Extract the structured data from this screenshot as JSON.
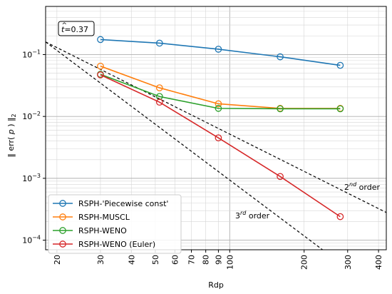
{
  "chart_data": {
    "type": "line",
    "xlabel": "Rdp",
    "ylabel_parts": [
      "‖ err( ",
      "p",
      " ) ‖",
      "2"
    ],
    "xscale": "log",
    "yscale": "log",
    "xlim": [
      18,
      430
    ],
    "ylim": [
      7e-05,
      0.6
    ],
    "grid": "on (major and minor)",
    "annotation": {
      "prefix": "t",
      "text": "=0.37"
    },
    "x_ticks": [
      {
        "value": 20,
        "label": "20"
      },
      {
        "value": 30,
        "label": "30"
      },
      {
        "value": 40,
        "label": "40"
      },
      {
        "value": 50,
        "label": "50"
      },
      {
        "value": 60,
        "label": "60"
      },
      {
        "value": 70,
        "label": "70"
      },
      {
        "value": 80,
        "label": "80"
      },
      {
        "value": 90,
        "label": "90"
      },
      {
        "value": 100,
        "label": "100"
      },
      {
        "value": 200,
        "label": "200"
      },
      {
        "value": 300,
        "label": "300"
      },
      {
        "value": 400,
        "label": "400"
      }
    ],
    "y_ticks": [
      {
        "value": 0.1,
        "base": "10",
        "exp": "−1"
      },
      {
        "value": 0.01,
        "base": "10",
        "exp": "−2"
      },
      {
        "value": 0.001,
        "base": "10",
        "exp": "−3"
      },
      {
        "value": 0.0001,
        "base": "10",
        "exp": "−4"
      }
    ],
    "x": [
      30,
      52,
      90,
      160,
      280
    ],
    "series": [
      {
        "name": "RSPH-'Piecewise const'",
        "color": "#1f77b4",
        "values": [
          0.175,
          0.153,
          0.122,
          0.092,
          0.067
        ]
      },
      {
        "name": "RSPH-MUSCL",
        "color": "#ff7f0e",
        "values": [
          0.065,
          0.029,
          0.016,
          0.0135,
          0.0135
        ]
      },
      {
        "name": "RSPH-WENO",
        "color": "#2ca02c",
        "values": [
          0.048,
          0.021,
          0.0135,
          0.0133,
          0.0133
        ]
      },
      {
        "name": "RSPH-WENO (Euler)",
        "color": "#d62728",
        "values": [
          0.047,
          0.017,
          0.0045,
          0.00107,
          0.00024
        ]
      }
    ],
    "reference_lines": [
      {
        "order": "2",
        "suffix": "nd",
        "word": " order",
        "x": [
          18,
          430
        ],
        "y": [
          0.16,
          0.00028
        ]
      },
      {
        "order": "3",
        "suffix": "rd",
        "word": " order",
        "x": [
          18,
          250
        ],
        "y": [
          0.16,
          6e-05
        ]
      }
    ]
  }
}
